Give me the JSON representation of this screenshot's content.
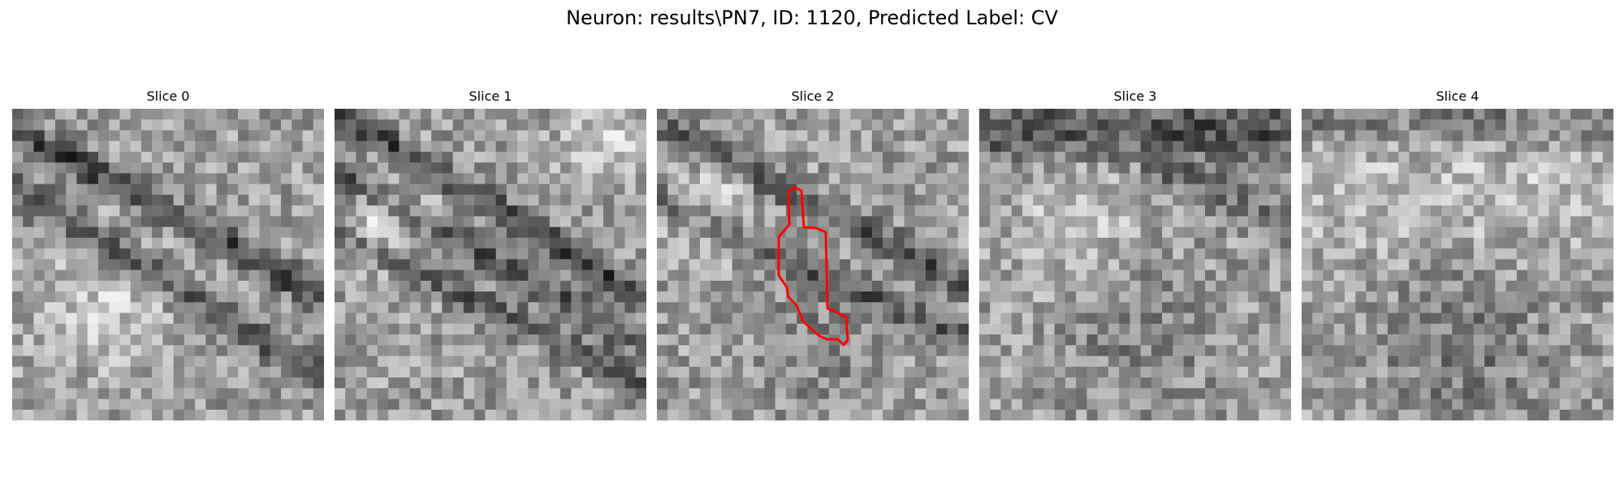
{
  "figure": {
    "title": "Neuron: results\\PN7, ID: 1120, Predicted Label: CV"
  },
  "panels": [
    {
      "title": "Slice 0",
      "seed": 11,
      "contour": false
    },
    {
      "title": "Slice 1",
      "seed": 23,
      "contour": false
    },
    {
      "title": "Slice 2",
      "seed": 37,
      "contour": true
    },
    {
      "title": "Slice 3",
      "seed": 41,
      "contour": false
    },
    {
      "title": "Slice 4",
      "seed": 59,
      "contour": false
    }
  ],
  "colors": {
    "contour": "#ff0000",
    "background": "#ffffff"
  },
  "grid": {
    "cells": 29
  }
}
